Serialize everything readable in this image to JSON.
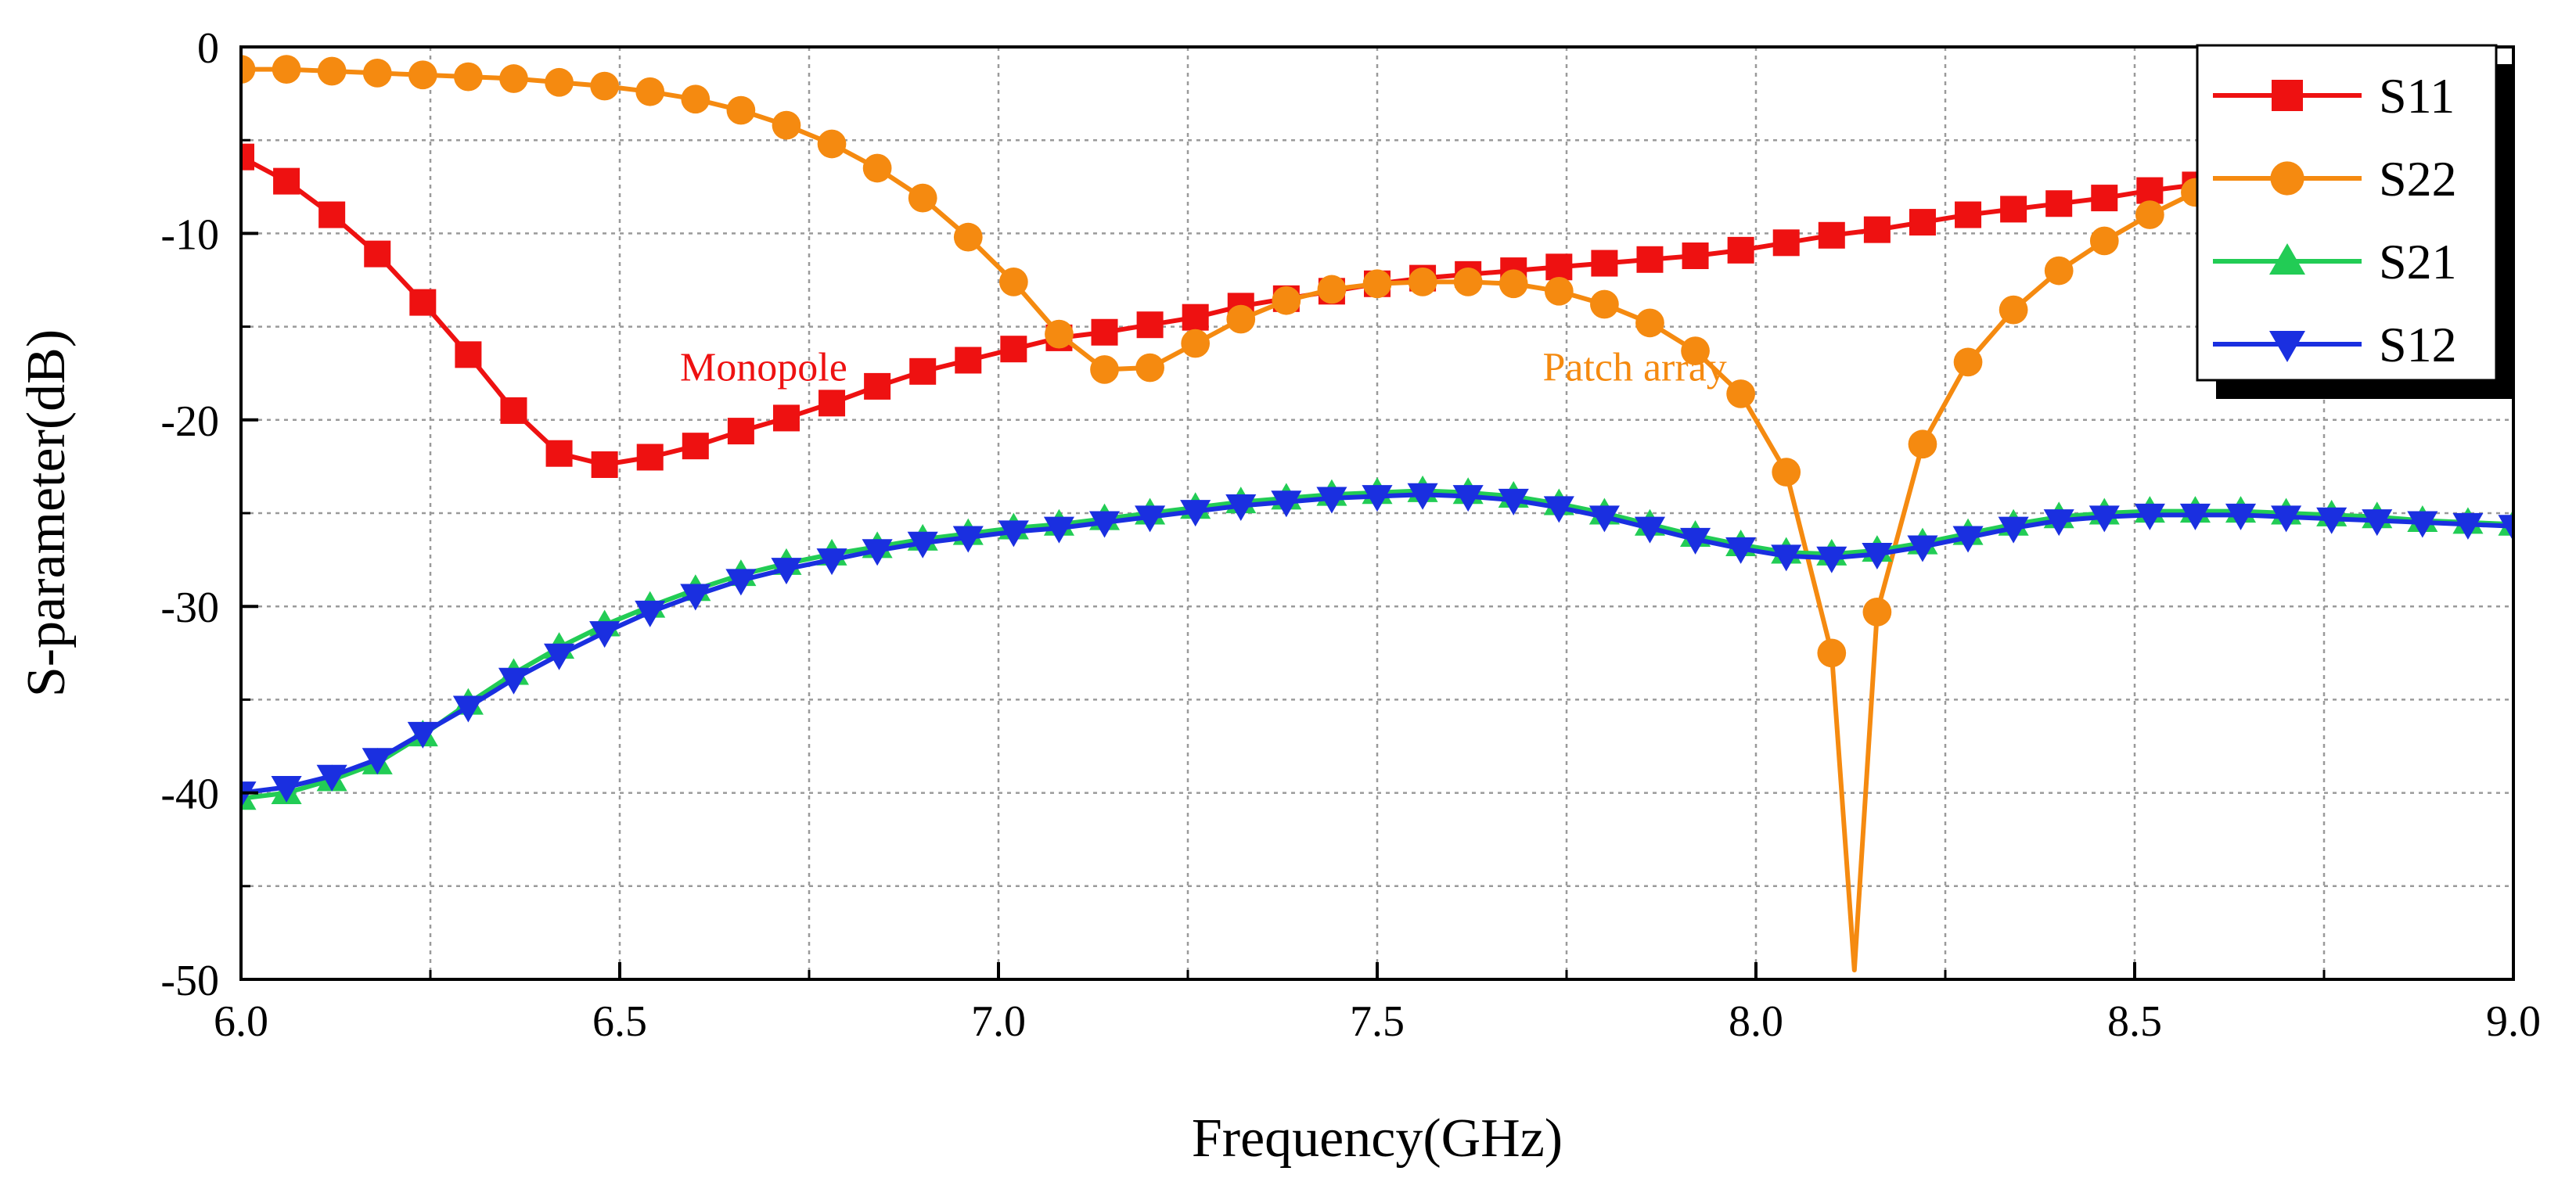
{
  "chart_data": {
    "type": "line",
    "title": "",
    "xlabel": "Frequency(GHz)",
    "ylabel": "S-parameter(dB)",
    "xlim": [
      6.0,
      9.0
    ],
    "ylim": [
      -50,
      0
    ],
    "xticks": [
      "6.0",
      "6.5",
      "7.0",
      "7.5",
      "8.0",
      "8.5",
      "9.0"
    ],
    "yticks": [
      "0",
      "-10",
      "-20",
      "-30",
      "-40",
      "-50"
    ],
    "xtick_values": [
      6.0,
      6.5,
      7.0,
      7.5,
      8.0,
      8.5,
      9.0
    ],
    "ytick_values": [
      0,
      -10,
      -20,
      -30,
      -40,
      -50
    ],
    "grid": true,
    "legend_position": "top-right",
    "annotations": [
      {
        "text": "Monopole",
        "x": 6.69,
        "y": -17.9,
        "color": "#ee1111"
      },
      {
        "text": "Patch array",
        "x": 7.84,
        "y": -17.9,
        "color": "#f58a10"
      }
    ],
    "series": [
      {
        "name": "S11",
        "color": "#ee1111",
        "marker": "square",
        "x": [
          6.0,
          6.06,
          6.12,
          6.18,
          6.24,
          6.3,
          6.36,
          6.42,
          6.48,
          6.54,
          6.6,
          6.66,
          6.72,
          6.78,
          6.84,
          6.9,
          6.96,
          7.02,
          7.08,
          7.14,
          7.2,
          7.26,
          7.32,
          7.38,
          7.44,
          7.5,
          7.56,
          7.62,
          7.68,
          7.74,
          7.8,
          7.86,
          7.92,
          7.98,
          8.04,
          8.1,
          8.16,
          8.22,
          8.28,
          8.34,
          8.4,
          8.46,
          8.52,
          8.58
        ],
        "y": [
          -5.9,
          -7.2,
          -9.0,
          -11.1,
          -13.7,
          -16.5,
          -19.5,
          -21.8,
          -22.4,
          -22.0,
          -21.4,
          -20.6,
          -19.9,
          -19.1,
          -18.2,
          -17.4,
          -16.8,
          -16.2,
          -15.6,
          -15.3,
          -14.9,
          -14.5,
          -13.9,
          -13.5,
          -13.1,
          -12.7,
          -12.4,
          -12.2,
          -12.0,
          -11.8,
          -11.6,
          -11.4,
          -11.2,
          -10.9,
          -10.5,
          -10.1,
          -9.8,
          -9.4,
          -9.0,
          -8.7,
          -8.4,
          -8.1,
          -7.7,
          -7.4
        ]
      },
      {
        "name": "S22",
        "color": "#f58a10",
        "marker": "circle",
        "x": [
          6.0,
          6.06,
          6.12,
          6.18,
          6.24,
          6.3,
          6.36,
          6.42,
          6.48,
          6.54,
          6.6,
          6.66,
          6.72,
          6.78,
          6.84,
          6.9,
          6.96,
          7.02,
          7.08,
          7.14,
          7.2,
          7.26,
          7.32,
          7.38,
          7.44,
          7.5,
          7.56,
          7.62,
          7.68,
          7.74,
          7.8,
          7.86,
          7.92,
          7.98,
          8.04,
          8.1,
          8.13,
          8.16,
          8.22,
          8.28,
          8.34,
          8.4,
          8.46,
          8.52,
          8.58
        ],
        "y": [
          -1.2,
          -1.2,
          -1.3,
          -1.4,
          -1.5,
          -1.6,
          -1.7,
          -1.9,
          -2.1,
          -2.4,
          -2.8,
          -3.4,
          -4.2,
          -5.2,
          -6.5,
          -8.1,
          -10.2,
          -12.6,
          -15.4,
          -17.3,
          -17.2,
          -15.9,
          -14.6,
          -13.6,
          -13.0,
          -12.7,
          -12.6,
          -12.6,
          -12.7,
          -13.1,
          -13.8,
          -14.8,
          -16.3,
          -18.6,
          -22.8,
          -32.5,
          -49.5,
          -30.3,
          -21.3,
          -16.9,
          -14.1,
          -12.0,
          -10.4,
          -9.0,
          -7.8
        ]
      },
      {
        "name": "S21",
        "color": "#22cc55",
        "marker": "triangle-up",
        "x": [
          6.0,
          6.06,
          6.12,
          6.18,
          6.24,
          6.3,
          6.36,
          6.42,
          6.48,
          6.54,
          6.6,
          6.66,
          6.72,
          6.78,
          6.84,
          6.9,
          6.96,
          7.02,
          7.08,
          7.14,
          7.2,
          7.26,
          7.32,
          7.38,
          7.44,
          7.5,
          7.56,
          7.62,
          7.68,
          7.74,
          7.8,
          7.86,
          7.92,
          7.98,
          8.04,
          8.1,
          8.16,
          8.22,
          8.28,
          8.34,
          8.4,
          8.46,
          8.52,
          8.58,
          8.64,
          8.7,
          8.76,
          8.82,
          8.88,
          8.94,
          9.0
        ],
        "y": [
          -40.3,
          -40.0,
          -39.3,
          -38.4,
          -36.9,
          -35.2,
          -33.6,
          -32.2,
          -31.0,
          -30.0,
          -29.1,
          -28.3,
          -27.7,
          -27.2,
          -26.8,
          -26.4,
          -26.1,
          -25.8,
          -25.6,
          -25.3,
          -25.0,
          -24.7,
          -24.4,
          -24.2,
          -24.0,
          -23.9,
          -23.8,
          -23.9,
          -24.1,
          -24.5,
          -25.0,
          -25.6,
          -26.2,
          -26.7,
          -27.1,
          -27.2,
          -27.0,
          -26.6,
          -26.1,
          -25.6,
          -25.2,
          -25.0,
          -24.9,
          -24.9,
          -24.9,
          -25.0,
          -25.1,
          -25.2,
          -25.4,
          -25.5,
          -25.6
        ]
      },
      {
        "name": "S12",
        "color": "#1a2fe0",
        "marker": "triangle-down",
        "x": [
          6.0,
          6.06,
          6.12,
          6.18,
          6.24,
          6.3,
          6.36,
          6.42,
          6.48,
          6.54,
          6.6,
          6.66,
          6.72,
          6.78,
          6.84,
          6.9,
          6.96,
          7.02,
          7.08,
          7.14,
          7.2,
          7.26,
          7.32,
          7.38,
          7.44,
          7.5,
          7.56,
          7.62,
          7.68,
          7.74,
          7.8,
          7.86,
          7.92,
          7.98,
          8.04,
          8.1,
          8.16,
          8.22,
          8.28,
          8.34,
          8.4,
          8.46,
          8.52,
          8.58,
          8.64,
          8.7,
          8.76,
          8.82,
          8.88,
          8.94,
          9.0
        ],
        "y": [
          -40.0,
          -39.7,
          -39.1,
          -38.2,
          -36.8,
          -35.4,
          -33.9,
          -32.6,
          -31.4,
          -30.3,
          -29.4,
          -28.6,
          -28.0,
          -27.5,
          -27.0,
          -26.6,
          -26.3,
          -26.0,
          -25.8,
          -25.5,
          -25.2,
          -24.9,
          -24.6,
          -24.4,
          -24.2,
          -24.1,
          -24.0,
          -24.1,
          -24.3,
          -24.7,
          -25.2,
          -25.8,
          -26.4,
          -26.9,
          -27.3,
          -27.4,
          -27.2,
          -26.8,
          -26.3,
          -25.8,
          -25.4,
          -25.2,
          -25.1,
          -25.1,
          -25.1,
          -25.2,
          -25.3,
          -25.4,
          -25.5,
          -25.6,
          -25.7
        ]
      }
    ]
  }
}
